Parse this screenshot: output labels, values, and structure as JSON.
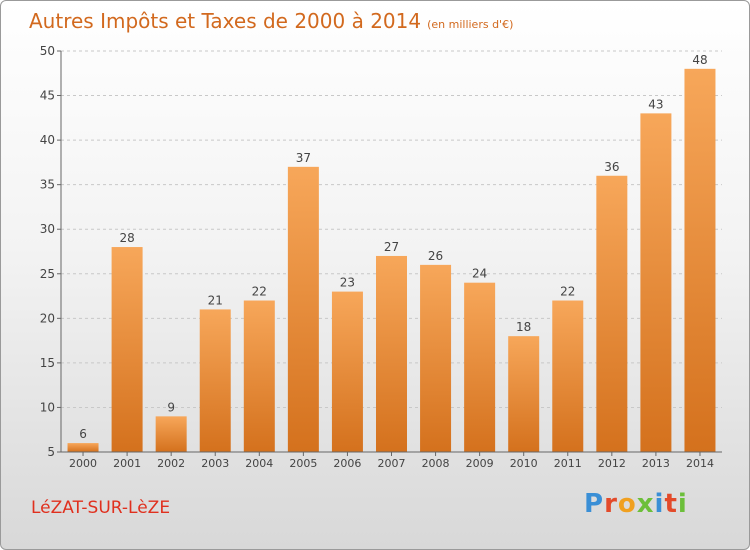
{
  "chart_data": {
    "type": "bar",
    "title": "Autres Impôts et Taxes de 2000 à 2014",
    "subtitle": "(en milliers d'€)",
    "categories": [
      "2000",
      "2001",
      "2002",
      "2003",
      "2004",
      "2005",
      "2006",
      "2007",
      "2008",
      "2009",
      "2010",
      "2011",
      "2012",
      "2013",
      "2014"
    ],
    "values": [
      6,
      28,
      9,
      21,
      22,
      37,
      23,
      27,
      26,
      24,
      18,
      22,
      36,
      43,
      48
    ],
    "ylim": [
      5,
      50
    ],
    "yticks": [
      5,
      10,
      15,
      20,
      25,
      30,
      35,
      40,
      45,
      50
    ],
    "grid": "horizontal dashed",
    "bar_color_top": "#f7a75a",
    "bar_color_bottom": "#d4711d"
  },
  "footer": {
    "town": "LéZAT-SUR-LèZE",
    "logo_letters": [
      "P",
      "r",
      "o",
      "x",
      "i",
      "t",
      "i"
    ],
    "logo_colors": [
      "#3a8fd6",
      "#e34a2a",
      "#f0a020",
      "#6cbf3a",
      "#3a8fd6",
      "#e34a2a",
      "#6cbf3a"
    ]
  }
}
